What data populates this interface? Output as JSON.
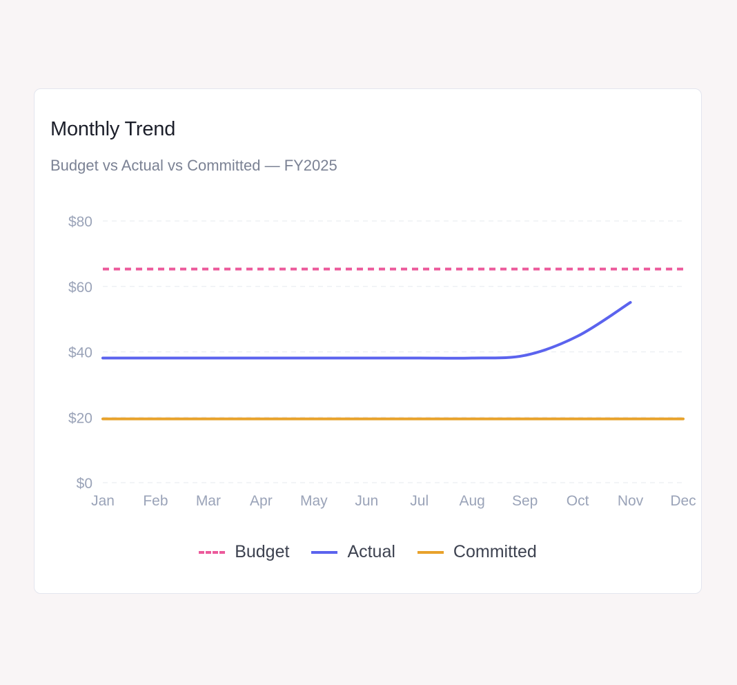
{
  "card": {
    "title": "Monthly Trend",
    "subtitle": "Budget vs Actual vs Committed — FY2025"
  },
  "chart_data": {
    "type": "line",
    "x": [
      "Jan",
      "Feb",
      "Mar",
      "Apr",
      "May",
      "Jun",
      "Jul",
      "Aug",
      "Sep",
      "Oct",
      "Nov",
      "Dec"
    ],
    "ylim": [
      0,
      80
    ],
    "yticks": [
      0,
      20,
      40,
      60,
      80
    ],
    "ytick_labels": [
      "$0",
      "$20",
      "$40",
      "$60",
      "$80"
    ],
    "grid": true,
    "legend_position": "bottom",
    "series": [
      {
        "name": "Budget",
        "color": "#ec5a9b",
        "style": "dashed",
        "values": [
          65.3,
          65.3,
          65.3,
          65.3,
          65.3,
          65.3,
          65.3,
          65.3,
          65.3,
          65.3,
          65.3,
          65.3
        ]
      },
      {
        "name": "Actual",
        "color": "#5b63ee",
        "style": "solid",
        "values": [
          38.1,
          38.1,
          38.1,
          38.1,
          38.1,
          38.1,
          38.1,
          38.1,
          38.9,
          44.8,
          55.1,
          null
        ]
      },
      {
        "name": "Committed",
        "color": "#e8a22b",
        "style": "solid",
        "values": [
          19.5,
          19.5,
          19.5,
          19.5,
          19.5,
          19.5,
          19.5,
          19.5,
          19.5,
          19.5,
          19.5,
          19.5
        ]
      }
    ]
  }
}
